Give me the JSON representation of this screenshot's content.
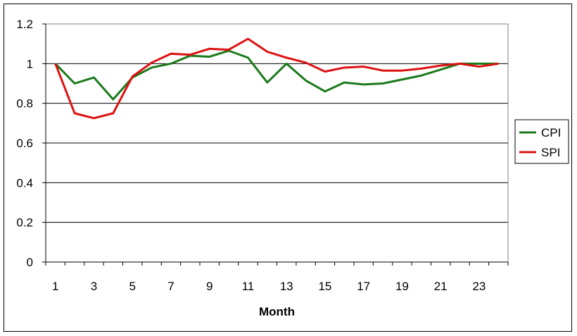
{
  "chart_data": {
    "type": "line",
    "title": "",
    "xlabel": "Month",
    "ylabel": "",
    "ylim": [
      0,
      1.2
    ],
    "xlim": [
      1,
      24
    ],
    "x": [
      1,
      2,
      3,
      4,
      5,
      6,
      7,
      8,
      9,
      10,
      11,
      12,
      13,
      14,
      15,
      16,
      17,
      18,
      19,
      20,
      21,
      22,
      23,
      24
    ],
    "x_tick_labels": [
      "1",
      "3",
      "5",
      "7",
      "9",
      "11",
      "13",
      "15",
      "17",
      "19",
      "21",
      "23"
    ],
    "y_tick_labels": [
      "0",
      "0.2",
      "0.4",
      "0.6",
      "0.8",
      "1",
      "1.2"
    ],
    "grid": "horizontal major gridlines",
    "legend_position": "right",
    "series": [
      {
        "name": "CPI",
        "color": "#1a7a1a",
        "values": [
          1.0,
          0.9,
          0.93,
          0.82,
          0.93,
          0.98,
          1.0,
          1.04,
          1.035,
          1.065,
          1.03,
          0.905,
          1.0,
          0.915,
          0.86,
          0.905,
          0.895,
          0.9,
          0.92,
          0.94,
          0.97,
          1.0,
          1.0,
          1.0
        ]
      },
      {
        "name": "SPI",
        "color": "#dd1111",
        "values": [
          1.0,
          0.75,
          0.725,
          0.75,
          0.935,
          1.005,
          1.05,
          1.045,
          1.075,
          1.07,
          1.125,
          1.06,
          1.03,
          1.005,
          0.96,
          0.98,
          0.985,
          0.965,
          0.965,
          0.975,
          0.99,
          1.0,
          0.985,
          1.0
        ]
      }
    ]
  }
}
